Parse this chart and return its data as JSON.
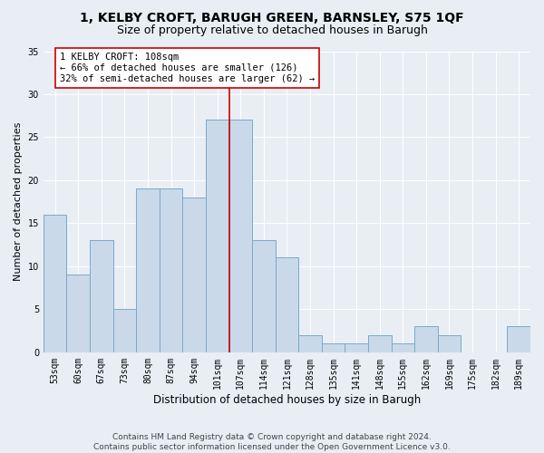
{
  "title1": "1, KELBY CROFT, BARUGH GREEN, BARNSLEY, S75 1QF",
  "title2": "Size of property relative to detached houses in Barugh",
  "xlabel": "Distribution of detached houses by size in Barugh",
  "ylabel": "Number of detached properties",
  "categories": [
    "53sqm",
    "60sqm",
    "67sqm",
    "73sqm",
    "80sqm",
    "87sqm",
    "94sqm",
    "101sqm",
    "107sqm",
    "114sqm",
    "121sqm",
    "128sqm",
    "135sqm",
    "141sqm",
    "148sqm",
    "155sqm",
    "162sqm",
    "169sqm",
    "175sqm",
    "182sqm",
    "189sqm"
  ],
  "values": [
    16,
    9,
    13,
    5,
    19,
    19,
    18,
    27,
    27,
    13,
    11,
    2,
    1,
    1,
    2,
    1,
    3,
    2,
    0,
    0,
    3
  ],
  "bar_color": "#c9d9ea",
  "bar_edge_color": "#7aaac8",
  "property_line_color": "#cc0000",
  "property_line_index": 8,
  "annotation_text": "1 KELBY CROFT: 108sqm\n← 66% of detached houses are smaller (126)\n32% of semi-detached houses are larger (62) →",
  "annotation_box_color": "#ffffff",
  "annotation_box_edge": "#cc0000",
  "ylim": [
    0,
    35
  ],
  "yticks": [
    0,
    5,
    10,
    15,
    20,
    25,
    30,
    35
  ],
  "background_color": "#e8eef4",
  "footer_text": "Contains HM Land Registry data © Crown copyright and database right 2024.\nContains public sector information licensed under the Open Government Licence v3.0.",
  "title1_fontsize": 10,
  "title2_fontsize": 9,
  "xlabel_fontsize": 8.5,
  "ylabel_fontsize": 8,
  "tick_fontsize": 7,
  "annotation_fontsize": 7.5,
  "footer_fontsize": 6.5
}
